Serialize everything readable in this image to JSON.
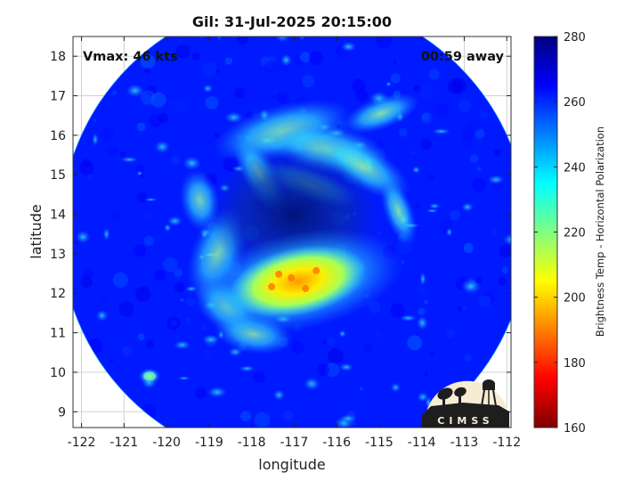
{
  "chart_data": {
    "type": "heatmap",
    "title": "Gil: 31-Jul-2025 20:15:00",
    "storm_name": "Gil",
    "valid_time": "31-Jul-2025 20:15:00",
    "xlabel": "longitude",
    "ylabel": "latitude",
    "xlim": [
      -122.2,
      -111.9
    ],
    "ylim": [
      8.6,
      18.5
    ],
    "xticks": [
      -122,
      -121,
      -120,
      -119,
      -118,
      -117,
      -116,
      -115,
      -114,
      -113,
      -112
    ],
    "yticks": [
      9,
      10,
      11,
      12,
      13,
      14,
      15,
      16,
      17,
      18
    ],
    "grid": true,
    "annotations": {
      "vmax_label": "Vmax: 46 kts",
      "time_offset_label": "00:59 away"
    },
    "colorbar": {
      "label": "Brightness Temp - Horizontal Polarization",
      "range": [
        160,
        280
      ],
      "ticks": [
        160,
        180,
        200,
        220,
        240,
        260,
        280
      ],
      "colors": [
        "#800000",
        "#ff0000",
        "#ff8000",
        "#ffff00",
        "#80ff80",
        "#00ffff",
        "#0080ff",
        "#0000ff",
        "#000080"
      ]
    },
    "swath": {
      "center_lon": -117.0,
      "center_lat": 13.55,
      "radius_deg": 5.5,
      "background_temp": 262,
      "features": [
        {
          "name": "eye",
          "lon": -117.0,
          "lat": 14.0,
          "temp": 272
        },
        {
          "name": "eyewall-south",
          "lon": -116.9,
          "lat": 12.3,
          "temp": 200
        },
        {
          "name": "rainband-north",
          "lon": -115.8,
          "lat": 15.2,
          "temp": 238
        },
        {
          "name": "rainband-west",
          "lon": -118.8,
          "lat": 13.0,
          "temp": 242
        }
      ]
    },
    "logo": {
      "text": "CIMSS"
    }
  }
}
